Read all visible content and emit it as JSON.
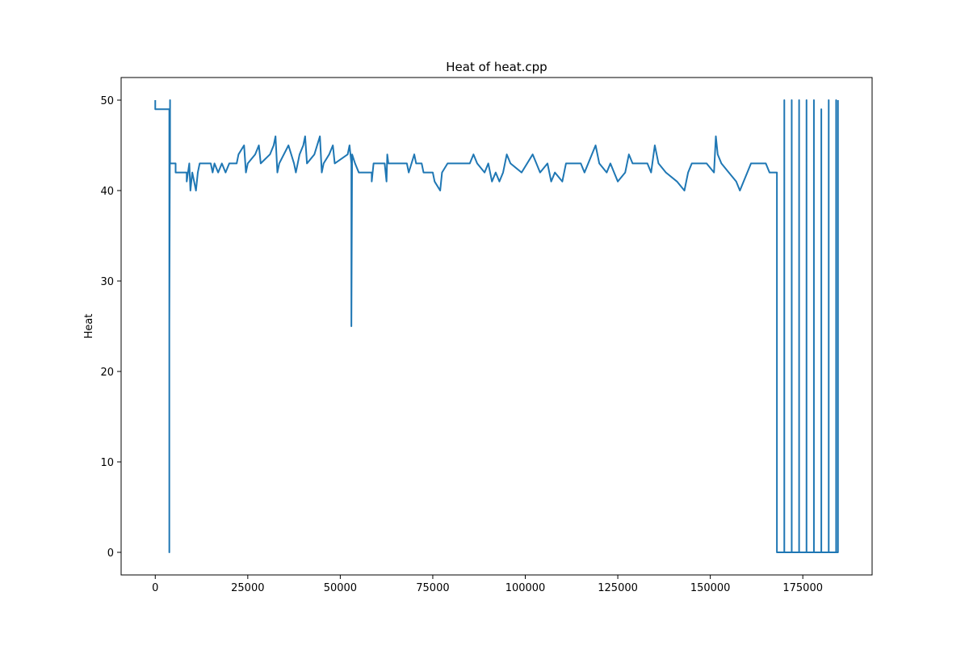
{
  "chart_data": {
    "type": "line",
    "title": "Heat of heat.cpp",
    "y_label": "Heat",
    "color": "#1f77b4",
    "grid": false,
    "xlim": [
      -9225,
      193725
    ],
    "ylim": [
      -2.5,
      52.5
    ],
    "xticks": [
      0,
      25000,
      50000,
      75000,
      100000,
      125000,
      150000,
      175000
    ],
    "yticks": [
      0,
      10,
      20,
      30,
      40,
      50
    ],
    "x": [
      0,
      0,
      3800,
      3800,
      3800,
      4000,
      4000,
      5500,
      5500,
      8500,
      8500,
      9200,
      9500,
      10000,
      10500,
      11000,
      11500,
      12000,
      15000,
      15500,
      16000,
      17000,
      18000,
      19000,
      20000,
      22000,
      22500,
      24000,
      24500,
      25000,
      27000,
      28000,
      28500,
      31000,
      32000,
      32500,
      33000,
      33500,
      36000,
      37500,
      38000,
      39000,
      40000,
      40500,
      41000,
      43000,
      44500,
      45000,
      45500,
      47000,
      48000,
      48500,
      52000,
      52500,
      53000,
      53000,
      53200,
      54000,
      55000,
      58500,
      58500,
      59000,
      62000,
      62500,
      62700,
      63000,
      68000,
      68500,
      70000,
      70500,
      72000,
      72500,
      75000,
      75500,
      77000,
      77500,
      79000,
      85000,
      86000,
      87000,
      89000,
      90000,
      91000,
      92000,
      93000,
      94000,
      95000,
      96000,
      99000,
      102000,
      103000,
      104000,
      106000,
      107000,
      108000,
      110000,
      111000,
      115000,
      116000,
      119000,
      119500,
      120000,
      122000,
      123000,
      124000,
      125000,
      127000,
      128000,
      129000,
      133000,
      134000,
      135000,
      135500,
      136000,
      138000,
      141000,
      143000,
      144000,
      145000,
      149000,
      151000,
      151500,
      152000,
      153000,
      155000,
      157000,
      158000,
      159000,
      160000,
      161000,
      165000,
      166000,
      168000,
      168000,
      170000,
      170000,
      170000,
      172000,
      172000,
      172000,
      174000,
      174000,
      174000,
      176000,
      176000,
      176000,
      178000,
      178000,
      178000,
      180000,
      180000,
      180000,
      182000,
      182000,
      182000,
      184000,
      184000,
      184000,
      184500,
      184500
    ],
    "values": [
      50,
      49,
      49,
      0,
      25,
      50,
      43,
      43,
      42,
      42,
      41,
      43,
      40,
      42,
      41,
      40,
      42,
      43,
      43,
      42,
      43,
      42,
      43,
      42,
      43,
      43,
      44,
      45,
      42,
      43,
      44,
      45,
      43,
      44,
      45,
      46,
      42,
      43,
      45,
      43,
      42,
      44,
      45,
      46,
      43,
      44,
      46,
      42,
      43,
      44,
      45,
      43,
      44,
      45,
      43,
      25,
      44,
      43,
      42,
      42,
      41,
      43,
      43,
      41,
      44,
      43,
      43,
      42,
      44,
      43,
      43,
      42,
      42,
      41,
      40,
      42,
      43,
      43,
      44,
      43,
      42,
      43,
      41,
      42,
      41,
      42,
      44,
      43,
      42,
      44,
      43,
      42,
      43,
      41,
      42,
      41,
      43,
      43,
      42,
      45,
      44,
      43,
      42,
      43,
      42,
      41,
      42,
      44,
      43,
      43,
      42,
      45,
      44,
      43,
      42,
      41,
      40,
      42,
      43,
      43,
      42,
      46,
      44,
      43,
      42,
      41,
      40,
      41,
      42,
      43,
      43,
      42,
      42,
      0,
      0,
      50,
      0,
      0,
      50,
      0,
      0,
      50,
      0,
      0,
      50,
      0,
      0,
      50,
      0,
      0,
      49,
      0,
      0,
      50,
      0,
      0,
      50,
      0,
      0,
      50
    ]
  }
}
